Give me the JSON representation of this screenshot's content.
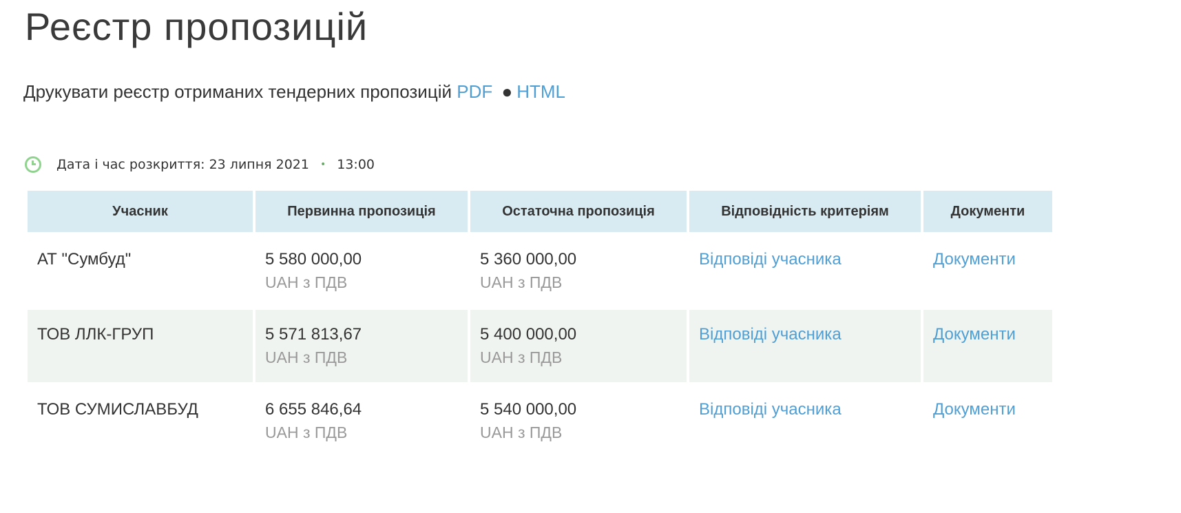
{
  "title": "Реєстр пропозицій",
  "print": {
    "text": "Друкувати реєстр отриманих тендерних пропозицій",
    "pdf": "PDF",
    "separator": "●",
    "html": "HTML"
  },
  "opening": {
    "label": "Дата і час розкриття: 23 липня 2021",
    "time": "13:00"
  },
  "table": {
    "headers": [
      "Учасник",
      "Первинна пропозиція",
      "Остаточна пропозиція",
      "Відповідність критеріям",
      "Документи"
    ],
    "rows": [
      {
        "participant": "АТ \"Сумбуд\"",
        "initial": "5 580 000,00",
        "final": "5 360 000,00",
        "currency": "UAH з ПДВ",
        "criteria": "Відповіді учасника",
        "docs": "Документи"
      },
      {
        "participant": "ТОВ ЛЛК-ГРУП",
        "initial": "5 571 813,67",
        "final": "5 400 000,00",
        "currency": "UAH з ПДВ",
        "criteria": "Відповіді учасника",
        "docs": "Документи"
      },
      {
        "participant": "ТОВ СУМИСЛАВБУД",
        "initial": "6 655 846,64",
        "final": "5 540 000,00",
        "currency": "UAH з ПДВ",
        "criteria": "Відповіді учасника",
        "docs": "Документи"
      }
    ]
  }
}
